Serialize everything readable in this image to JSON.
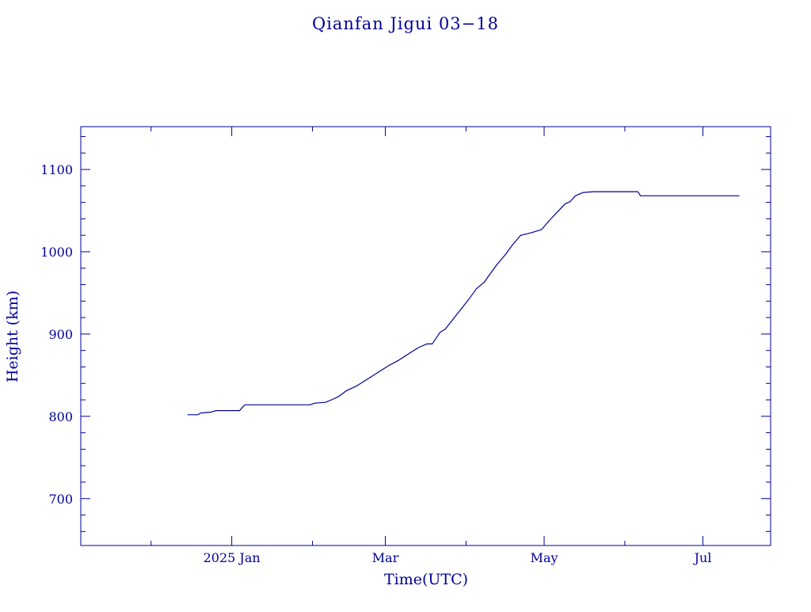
{
  "colors": {
    "axis": "#00009a",
    "line": "#00009a",
    "background": "#ffffff"
  },
  "chart_data": {
    "type": "line",
    "title": "Qianfan Jigui 03−18",
    "xlabel": "Time(UTC)",
    "ylabel": "Height (km)",
    "x_axis_type": "date",
    "xlim": [
      "2024-11-04",
      "2025-07-27"
    ],
    "ylim": [
      643,
      1152
    ],
    "grid": false,
    "legend": "none",
    "x_ticks": [
      {
        "date": "2025-01-01",
        "label": "2025 Jan"
      },
      {
        "date": "2025-03-01",
        "label": "Mar"
      },
      {
        "date": "2025-05-01",
        "label": "May"
      },
      {
        "date": "2025-07-01",
        "label": "Jul"
      }
    ],
    "x_minor_ticks": [
      "2024-12-01",
      "2025-02-01",
      "2025-04-01",
      "2025-06-01"
    ],
    "y_ticks": [
      700,
      800,
      900,
      1000,
      1100
    ],
    "y_minor_step": 20,
    "series": [
      {
        "color": "#00009a",
        "points": [
          [
            "2024-12-15",
            802
          ],
          [
            "2024-12-19",
            802
          ],
          [
            "2024-12-20",
            804
          ],
          [
            "2024-12-24",
            805
          ],
          [
            "2024-12-26",
            807
          ],
          [
            "2025-01-04",
            807
          ],
          [
            "2025-01-06",
            814
          ],
          [
            "2025-01-31",
            814
          ],
          [
            "2025-02-02",
            816
          ],
          [
            "2025-02-06",
            817
          ],
          [
            "2025-02-09",
            821
          ],
          [
            "2025-02-11",
            824
          ],
          [
            "2025-02-14",
            831
          ],
          [
            "2025-02-18",
            837
          ],
          [
            "2025-02-22",
            845
          ],
          [
            "2025-02-26",
            853
          ],
          [
            "2025-03-02",
            861
          ],
          [
            "2025-03-06",
            868
          ],
          [
            "2025-03-10",
            876
          ],
          [
            "2025-03-14",
            884
          ],
          [
            "2025-03-17",
            888
          ],
          [
            "2025-03-19",
            888
          ],
          [
            "2025-03-22",
            902
          ],
          [
            "2025-03-24",
            906
          ],
          [
            "2025-03-27",
            918
          ],
          [
            "2025-03-30",
            930
          ],
          [
            "2025-04-02",
            942
          ],
          [
            "2025-04-05",
            955
          ],
          [
            "2025-04-08",
            963
          ],
          [
            "2025-04-10",
            972
          ],
          [
            "2025-04-13",
            985
          ],
          [
            "2025-04-16",
            996
          ],
          [
            "2025-04-19",
            1009
          ],
          [
            "2025-04-22",
            1020
          ],
          [
            "2025-04-26",
            1023
          ],
          [
            "2025-04-30",
            1027
          ],
          [
            "2025-05-03",
            1038
          ],
          [
            "2025-05-06",
            1048
          ],
          [
            "2025-05-09",
            1058
          ],
          [
            "2025-05-11",
            1061
          ],
          [
            "2025-05-13",
            1068
          ],
          [
            "2025-05-16",
            1072
          ],
          [
            "2025-05-20",
            1073
          ],
          [
            "2025-05-28",
            1073
          ],
          [
            "2025-06-06",
            1073
          ],
          [
            "2025-06-07",
            1068
          ],
          [
            "2025-06-15",
            1068
          ],
          [
            "2025-06-30",
            1068
          ],
          [
            "2025-07-10",
            1068
          ],
          [
            "2025-07-15",
            1068
          ]
        ]
      }
    ]
  }
}
